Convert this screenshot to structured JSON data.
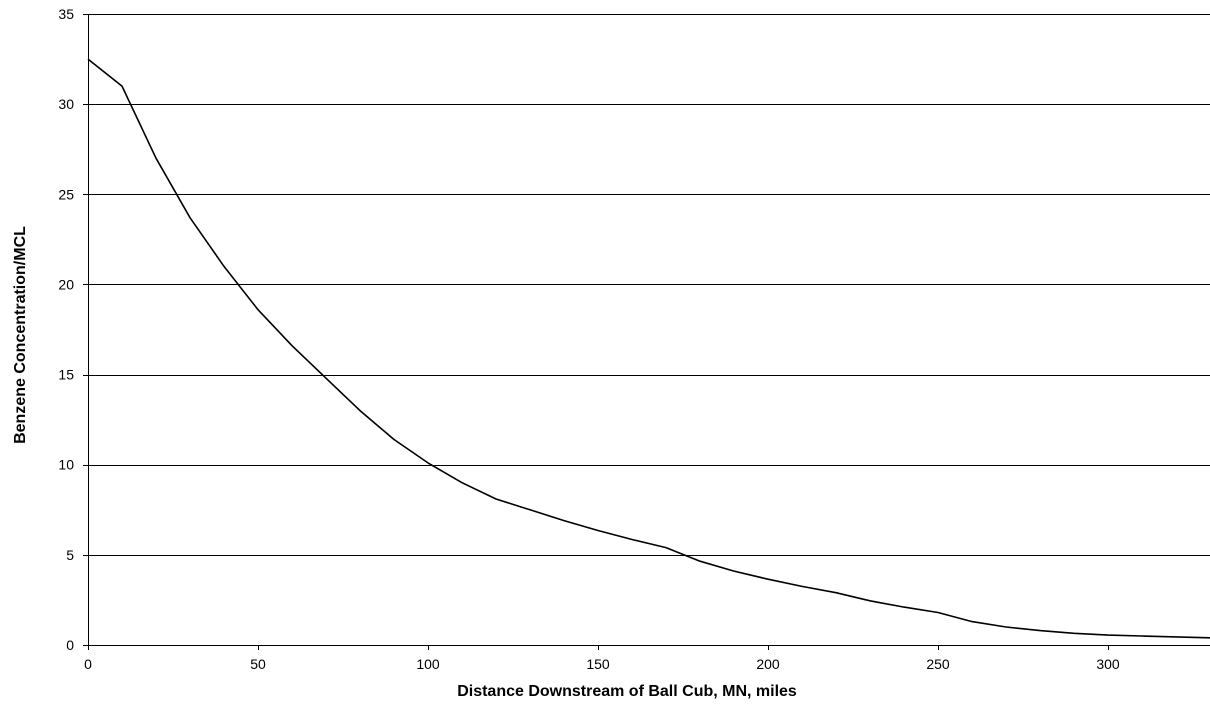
{
  "chart_data": {
    "type": "line",
    "title": "",
    "xlabel": "Distance Downstream of Ball Cub, MN, miles",
    "ylabel": "Benzene Concentration/MCL",
    "xlim": [
      0,
      330
    ],
    "ylim": [
      0,
      35
    ],
    "x_ticks": [
      0,
      50,
      100,
      150,
      200,
      250,
      300
    ],
    "y_ticks": [
      0,
      5,
      10,
      15,
      20,
      25,
      30,
      35
    ],
    "grid": "horizontal",
    "legend": "none",
    "line_color": "#000000",
    "series": [
      {
        "x": [
          0,
          10,
          20,
          30,
          40,
          50,
          60,
          70,
          80,
          90,
          100,
          110,
          120,
          130,
          140,
          150,
          160,
          170,
          180,
          190,
          200,
          210,
          220,
          230,
          240,
          250,
          260,
          270,
          280,
          290,
          300,
          310,
          320,
          330
        ],
        "values": [
          32.5,
          31.0,
          27.0,
          23.7,
          21.0,
          18.6,
          16.6,
          14.8,
          13.0,
          11.4,
          10.1,
          9.0,
          8.1,
          7.5,
          6.9,
          6.35,
          5.85,
          5.4,
          4.65,
          4.1,
          3.65,
          3.25,
          2.9,
          2.45,
          2.1,
          1.8,
          1.3,
          1.0,
          0.8,
          0.65,
          0.55,
          0.5,
          0.45,
          0.4
        ]
      }
    ]
  }
}
